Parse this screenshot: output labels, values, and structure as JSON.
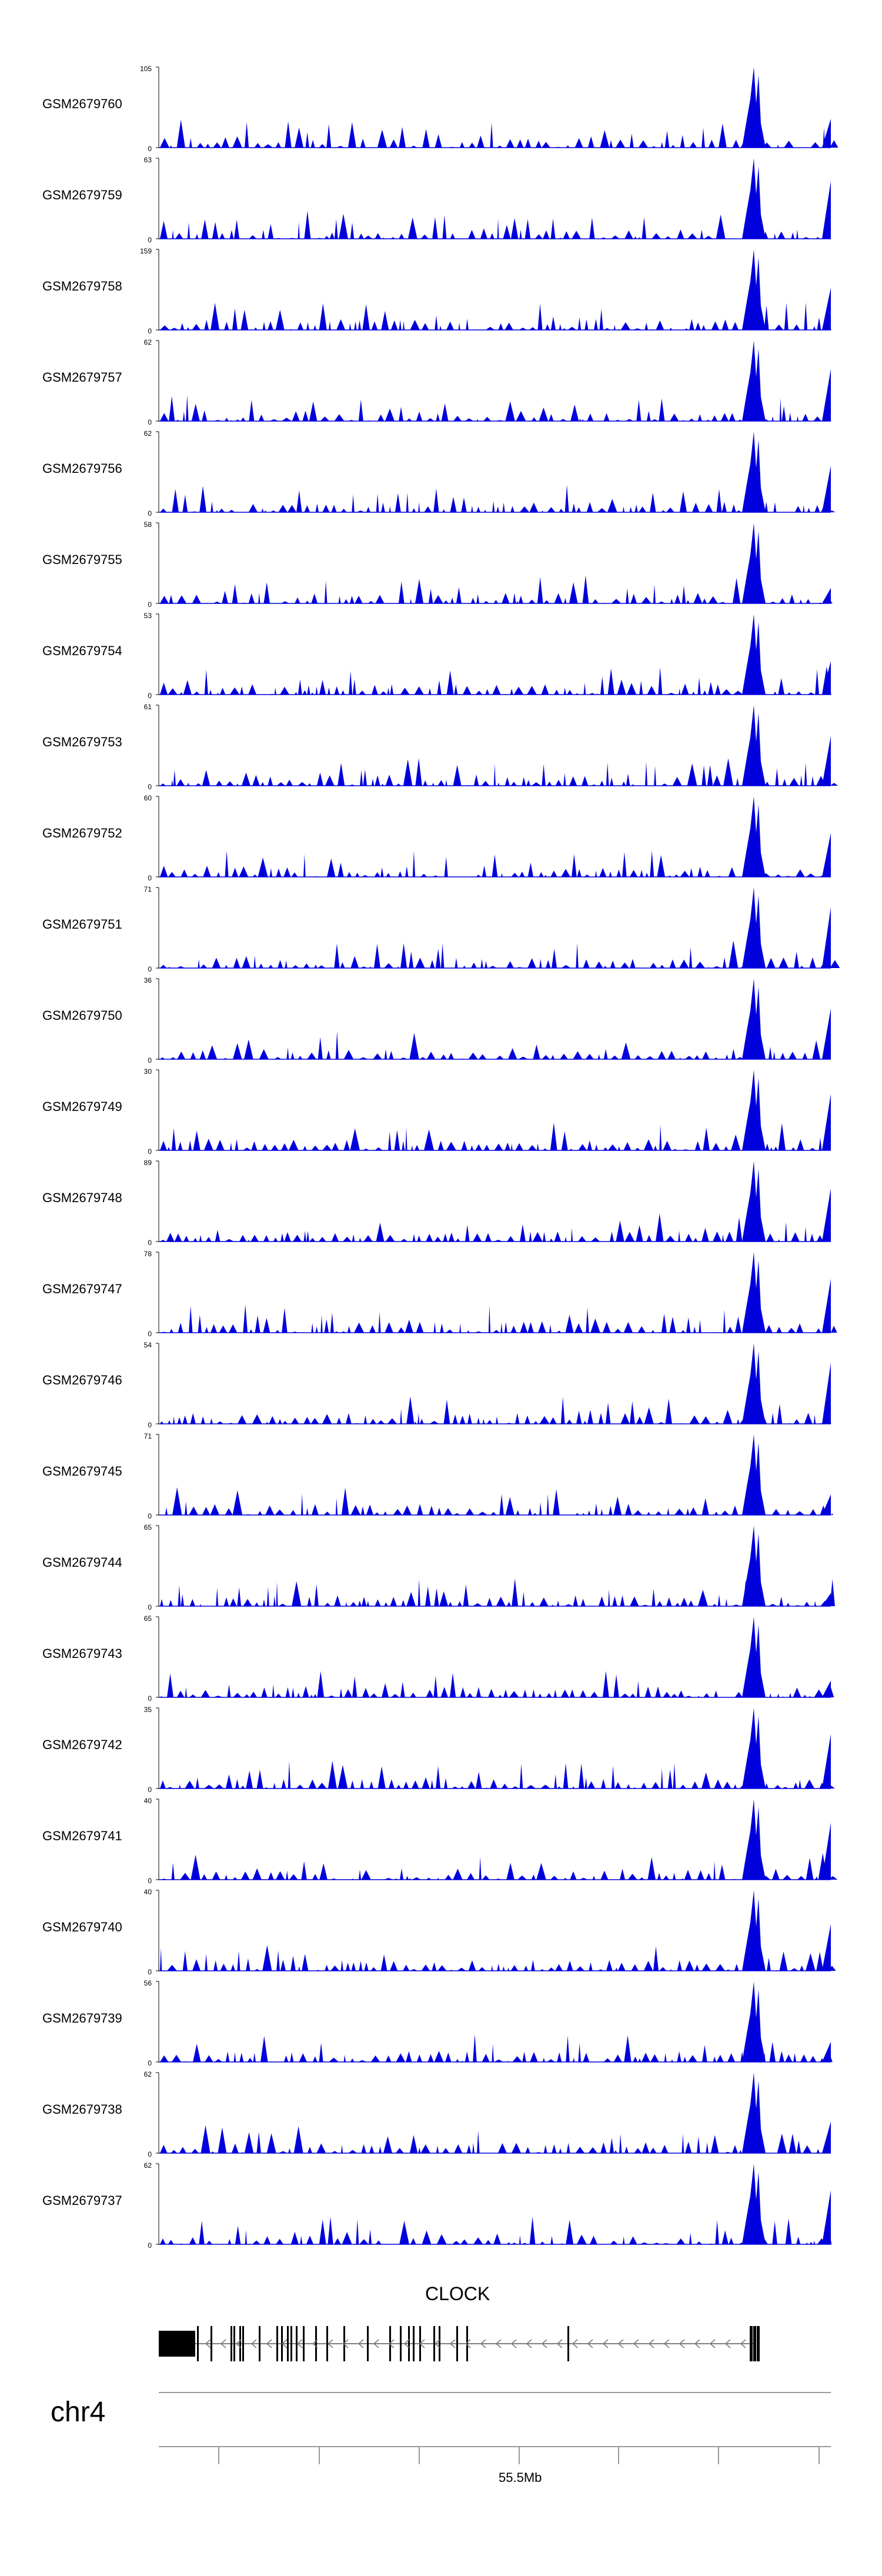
{
  "chart_data": {
    "type": "area",
    "color": "#0000dd",
    "series": [
      {
        "name": "GSM2679760",
        "ymin": "0",
        "ymax": "105",
        "seed": 11
      },
      {
        "name": "GSM2679759",
        "ymin": "0",
        "ymax": "63",
        "seed": 23
      },
      {
        "name": "GSM2679758",
        "ymin": "0",
        "ymax": "159",
        "seed": 37
      },
      {
        "name": "GSM2679757",
        "ymin": "0",
        "ymax": "62",
        "seed": 41
      },
      {
        "name": "GSM2679756",
        "ymin": "0",
        "ymax": "62",
        "seed": 53
      },
      {
        "name": "GSM2679755",
        "ymin": "0",
        "ymax": "58",
        "seed": 67
      },
      {
        "name": "GSM2679754",
        "ymin": "0",
        "ymax": "53",
        "seed": 71
      },
      {
        "name": "GSM2679753",
        "ymin": "0",
        "ymax": "61",
        "seed": 83
      },
      {
        "name": "GSM2679752",
        "ymin": "0",
        "ymax": "60",
        "seed": 97
      },
      {
        "name": "GSM2679751",
        "ymin": "0",
        "ymax": "71",
        "seed": 101
      },
      {
        "name": "GSM2679750",
        "ymin": "0",
        "ymax": "36",
        "seed": 113
      },
      {
        "name": "GSM2679749",
        "ymin": "0",
        "ymax": "30",
        "seed": 127
      },
      {
        "name": "GSM2679748",
        "ymin": "0",
        "ymax": "89",
        "seed": 131
      },
      {
        "name": "GSM2679747",
        "ymin": "0",
        "ymax": "78",
        "seed": 149
      },
      {
        "name": "GSM2679746",
        "ymin": "0",
        "ymax": "54",
        "seed": 151
      },
      {
        "name": "GSM2679745",
        "ymin": "0",
        "ymax": "71",
        "seed": 163
      },
      {
        "name": "GSM2679744",
        "ymin": "0",
        "ymax": "65",
        "seed": 173
      },
      {
        "name": "GSM2679743",
        "ymin": "0",
        "ymax": "65",
        "seed": 181
      },
      {
        "name": "GSM2679742",
        "ymin": "0",
        "ymax": "35",
        "seed": 191
      },
      {
        "name": "GSM2679741",
        "ymin": "0",
        "ymax": "40",
        "seed": 197
      },
      {
        "name": "GSM2679740",
        "ymin": "0",
        "ymax": "40",
        "seed": 211
      },
      {
        "name": "GSM2679739",
        "ymin": "0",
        "ymax": "56",
        "seed": 223
      },
      {
        "name": "GSM2679738",
        "ymin": "0",
        "ymax": "62",
        "seed": 227
      },
      {
        "name": "GSM2679737",
        "ymin": "0",
        "ymax": "62",
        "seed": 239
      }
    ],
    "gene": {
      "name": "CLOCK",
      "strand": "-"
    },
    "chromosome": "chr4",
    "axis_tick_label": "55.5Mb"
  }
}
